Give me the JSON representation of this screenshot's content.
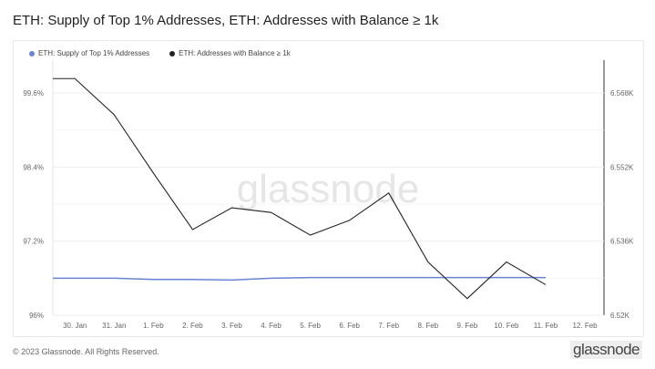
{
  "title": "ETH: Supply of Top 1% Addresses, ETH: Addresses with Balance ≥ 1k",
  "watermark": "glassnode",
  "footer": "© 2023 Glassnode. All Rights Reserved.",
  "logo": "glassnode",
  "chart_data": {
    "type": "line",
    "title": "ETH: Supply of Top 1% Addresses, ETH: Addresses with Balance ≥ 1k",
    "legend_position": "top-left",
    "grid": true,
    "x": [
      "2023-01-29",
      "2023-01-30",
      "2023-01-31",
      "2023-02-01",
      "2023-02-02",
      "2023-02-03",
      "2023-02-04",
      "2023-02-05",
      "2023-02-06",
      "2023-02-07",
      "2023-02-08",
      "2023-02-09",
      "2023-02-10",
      "2023-02-11"
    ],
    "xlim": [
      "2023-01-29T10:30",
      "2023-02-12T11:40"
    ],
    "x_ticks": [
      "30. Jan",
      "31. Jan",
      "1. Feb",
      "2. Feb",
      "3. Feb",
      "4. Feb",
      "5. Feb",
      "6. Feb",
      "7. Feb",
      "8. Feb",
      "9. Feb",
      "10. Feb",
      "11. Feb",
      "12. Feb"
    ],
    "y_left": {
      "ticks": [
        "96%",
        "97.2%",
        "98.4%",
        "99.6%"
      ],
      "range": [
        96,
        99.6
      ]
    },
    "y_right": {
      "ticks": [
        "6.52K",
        "6.536K",
        "6.552K",
        "6.568K"
      ],
      "range": [
        6520,
        6568
      ]
    },
    "series": [
      {
        "name": "ETH: Supply of Top 1% Addresses",
        "axis": "left",
        "color": "#6b84d8",
        "values": [
          96.6,
          96.6,
          96.6,
          96.58,
          96.58,
          96.57,
          96.6,
          96.61,
          96.61,
          96.61,
          96.61,
          96.61,
          96.61,
          96.61
        ]
      },
      {
        "name": "ETH: Addresses with Balance ≥ 1k",
        "axis": "right",
        "color": "#222222",
        "values": [
          6571.1,
          6571.1,
          6563.3,
          6550.7,
          6538.5,
          6543.2,
          6542.2,
          6537.3,
          6540.5,
          6546.4,
          6531.5,
          6523.6,
          6531.5,
          6526.6
        ]
      }
    ]
  }
}
